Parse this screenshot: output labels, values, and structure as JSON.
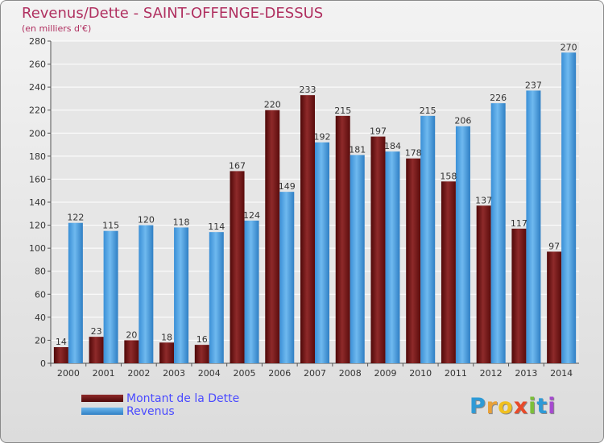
{
  "title": "Revenus/Dette - SAINT-OFFENGE-DESSUS",
  "subtitle": "(en milliers d'€)",
  "legend": [
    {
      "label": "Montant de la Dette",
      "color": "#6b0f0f"
    },
    {
      "label": "Revenus",
      "color": "#4a9fe0"
    }
  ],
  "logo": [
    "P",
    "r",
    "o",
    "x",
    "i",
    "t",
    "i"
  ],
  "logo_colors": [
    "#2e9ad6",
    "#e8a13a",
    "#f0c020",
    "#e84a2a",
    "#7bbf3a",
    "#2e9ad6",
    "#a64ad0"
  ],
  "chart_data": {
    "type": "bar",
    "title": "Revenus/Dette - SAINT-OFFENGE-DESSUS",
    "ylabel": "(en milliers d'€)",
    "ylim": [
      0,
      280
    ],
    "yticks": [
      0,
      20,
      40,
      60,
      80,
      100,
      120,
      140,
      160,
      180,
      200,
      220,
      240,
      260,
      280
    ],
    "categories": [
      "2000",
      "2001",
      "2002",
      "2003",
      "2004",
      "2005",
      "2006",
      "2007",
      "2008",
      "2009",
      "2010",
      "2011",
      "2012",
      "2013",
      "2014"
    ],
    "series": [
      {
        "name": "Montant de la Dette",
        "values": [
          14,
          23,
          20,
          18,
          16,
          167,
          220,
          233,
          215,
          197,
          178,
          158,
          137,
          117,
          97
        ]
      },
      {
        "name": "Revenus",
        "values": [
          122,
          115,
          120,
          118,
          114,
          124,
          149,
          192,
          181,
          184,
          215,
          206,
          226,
          237,
          270
        ]
      }
    ]
  }
}
